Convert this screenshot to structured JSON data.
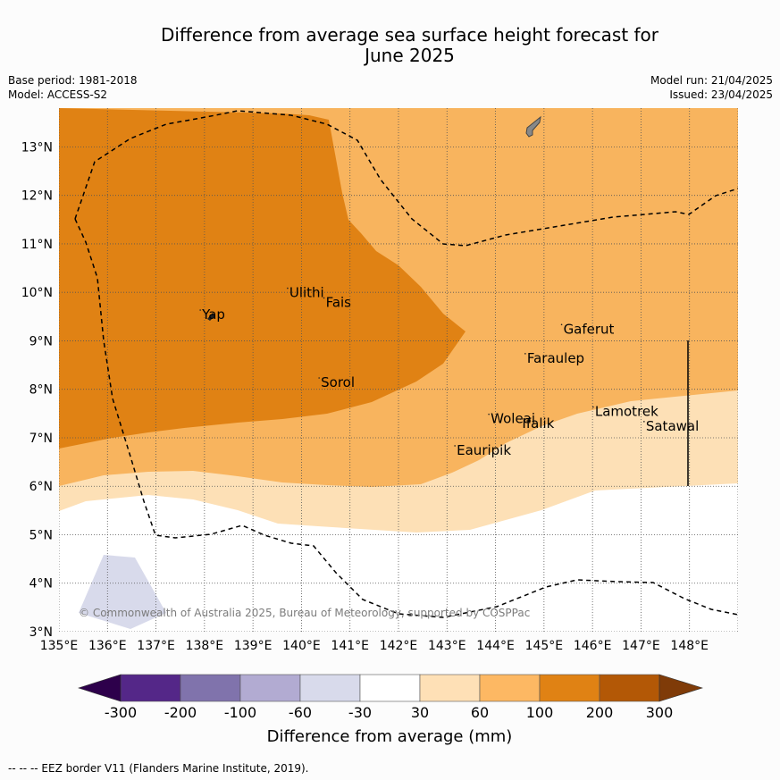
{
  "title": "Difference from average sea surface height forecast for\nJune 2025",
  "meta": {
    "base_period": "Base period: 1981-2018",
    "model": "Model: ACCESS-S2",
    "model_run": "Model run: 21/04/2025",
    "issued": "Issued: 23/04/2025"
  },
  "map": {
    "lon_range": [
      135,
      149
    ],
    "lat_range": [
      3,
      13.8
    ],
    "lon_ticks": [
      "135°E",
      "136°E",
      "137°E",
      "138°E",
      "139°E",
      "140°E",
      "141°E",
      "142°E",
      "143°E",
      "144°E",
      "145°E",
      "146°E",
      "147°E",
      "148°E"
    ],
    "lat_ticks": [
      "13°N",
      "12°N",
      "11°N",
      "10°N",
      "9°N",
      "8°N",
      "7°N",
      "6°N",
      "5°N",
      "4°N",
      "3°N"
    ],
    "grid": true,
    "islands": [
      {
        "name": "Yap",
        "lon": 137.95,
        "lat": 9.45
      },
      {
        "name": "Ulithi",
        "lon": 139.75,
        "lat": 9.9
      },
      {
        "name": "Fais",
        "lon": 140.5,
        "lat": 9.7
      },
      {
        "name": "Sorol",
        "lon": 140.4,
        "lat": 8.05
      },
      {
        "name": "Gaferut",
        "lon": 145.4,
        "lat": 9.15
      },
      {
        "name": "Faraulep",
        "lon": 144.65,
        "lat": 8.55
      },
      {
        "name": "Woleai",
        "lon": 143.9,
        "lat": 7.3
      },
      {
        "name": "Ifalik",
        "lon": 144.55,
        "lat": 7.2
      },
      {
        "name": "Lamotrek",
        "lon": 146.05,
        "lat": 7.45
      },
      {
        "name": "Satawal",
        "lon": 147.1,
        "lat": 7.15
      },
      {
        "name": "Eauripik",
        "lon": 143.2,
        "lat": 6.65
      }
    ],
    "copyright": "© Commonwealth of Australia 2025, Bureau of Meteorology, supported by COSPPac",
    "colors": {
      "c100_200": "#e08214",
      "c60_100": "#f8b45e",
      "c30_60": "#fde0b6",
      "cneg100_60": "#d8daeb",
      "land": "#888888"
    }
  },
  "colorbar": {
    "title": "Difference from average (mm)",
    "labels": [
      "-300",
      "-200",
      "-100",
      "-60",
      "-30",
      "30",
      "60",
      "100",
      "200",
      "300"
    ],
    "colors": [
      "#2d004b",
      "#542788",
      "#8073ac",
      "#b2abd2",
      "#d8daeb",
      "#ffffff",
      "#fee0b6",
      "#fdb863",
      "#e08214",
      "#b35806",
      "#7f3b08"
    ]
  },
  "footer": "--  --  -- EEZ border V11 (Flanders Marine Institute, 2019)."
}
